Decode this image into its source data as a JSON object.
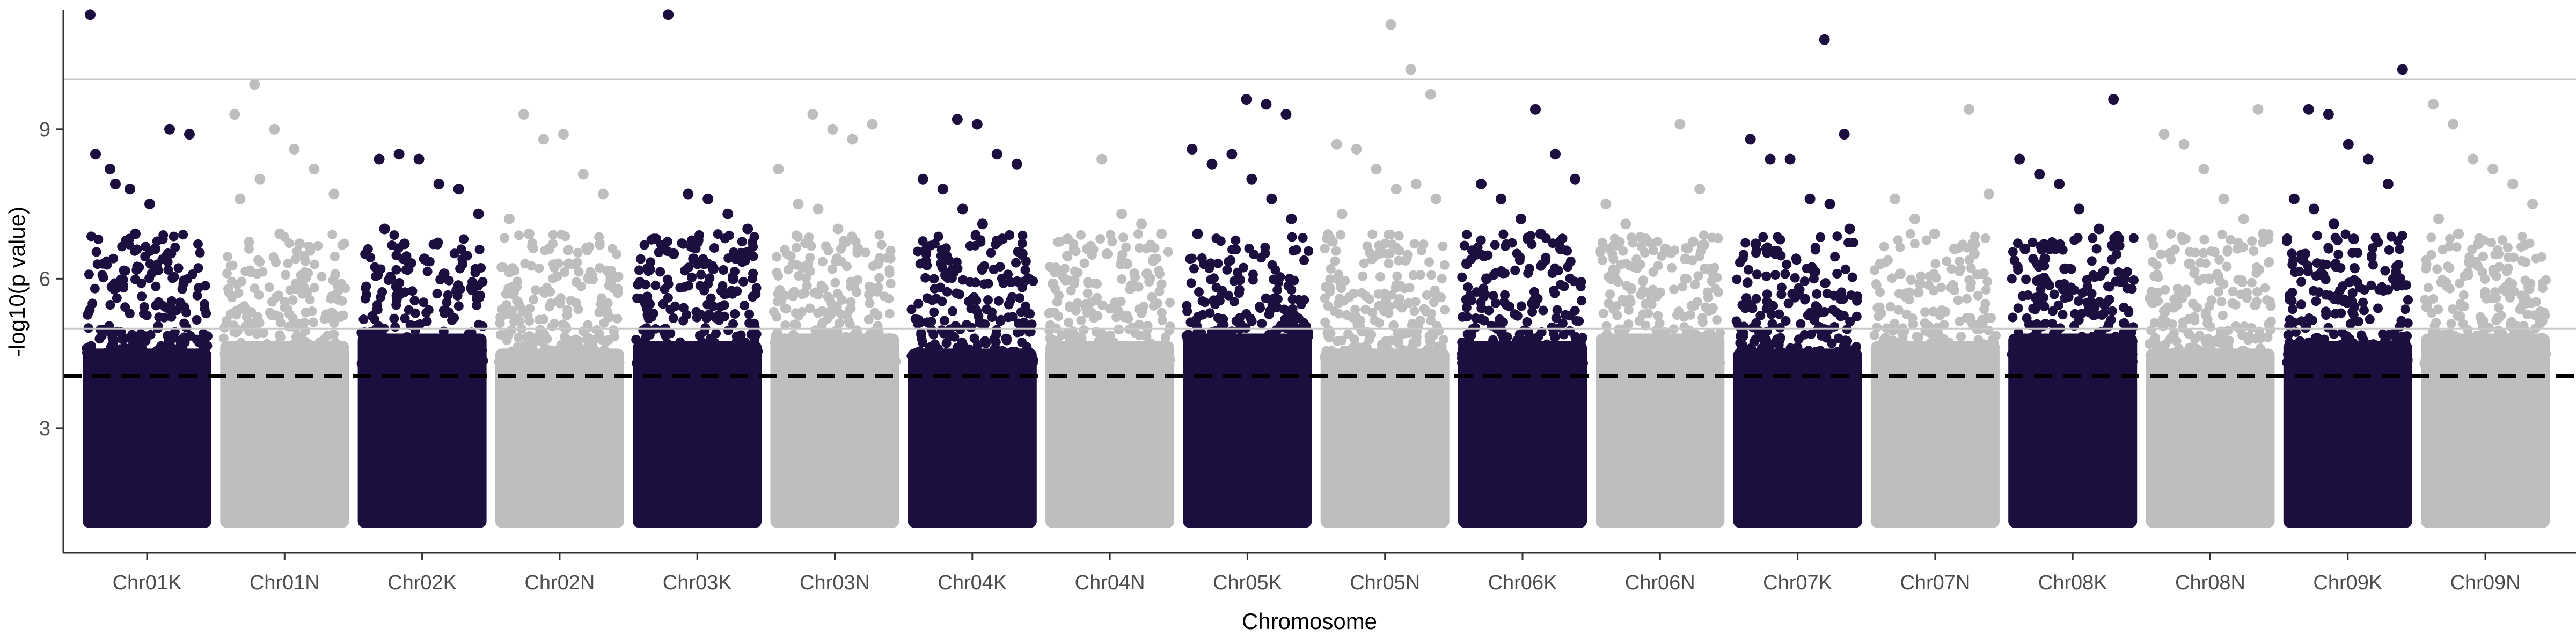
{
  "chart_data": {
    "type": "scatter",
    "subtype": "manhattan",
    "xlabel": "Chromosome",
    "ylabel": "-log10(p value)",
    "ylim": [
      0.5,
      11.4
    ],
    "y_ticks": [
      3,
      6,
      9
    ],
    "categories": [
      "Chr01K",
      "Chr01N",
      "Chr02K",
      "Chr02N",
      "Chr03K",
      "Chr03N",
      "Chr04K",
      "Chr04N",
      "Chr05K",
      "Chr05N",
      "Chr06K",
      "Chr06N",
      "Chr07K",
      "Chr07N",
      "Chr08K",
      "Chr08N",
      "Chr09K",
      "Chr09N"
    ],
    "colors": {
      "odd_chromosome": "#1c0f40",
      "even_chromosome": "#bebebe",
      "threshold_line": "#000000",
      "reference_line": "#c8c8c8",
      "axis_line": "#333333"
    },
    "threshold_line": {
      "y": 4.05,
      "style": "dashed"
    },
    "reference_lines": [
      5.0,
      10.0
    ],
    "point_floor": 1.0,
    "grid": false,
    "legend": "none",
    "peaks": [
      {
        "chromosome": "Chr01K",
        "values": [
          11.3,
          8.2,
          7.8,
          7.5,
          9.0,
          8.9,
          8.5,
          7.9,
          6.9,
          6.6
        ]
      },
      {
        "chromosome": "Chr01N",
        "values": [
          9.3,
          9.9,
          9.0,
          8.6,
          8.2,
          7.7,
          7.6,
          8.0,
          6.9,
          6.7
        ]
      },
      {
        "chromosome": "Chr02K",
        "values": [
          8.4,
          8.5,
          8.4,
          7.9,
          7.8,
          7.3,
          7.0,
          6.7,
          6.4,
          6.1
        ]
      },
      {
        "chromosome": "Chr02N",
        "values": [
          9.3,
          8.8,
          8.9,
          8.1,
          7.7,
          7.2,
          6.9,
          6.6,
          6.3,
          6.0
        ]
      },
      {
        "chromosome": "Chr03K",
        "values": [
          11.3,
          7.7,
          7.6,
          7.3,
          7.0,
          6.8,
          6.5,
          6.4,
          6.2,
          6.0
        ]
      },
      {
        "chromosome": "Chr03N",
        "values": [
          9.3,
          9.0,
          8.8,
          9.1,
          8.2,
          7.5,
          7.4,
          7.0,
          6.6,
          6.3
        ]
      },
      {
        "chromosome": "Chr04K",
        "values": [
          9.2,
          9.1,
          8.5,
          8.3,
          8.0,
          7.8,
          7.4,
          7.1,
          6.8,
          6.5
        ]
      },
      {
        "chromosome": "Chr04N",
        "values": [
          8.4,
          7.3,
          7.1,
          6.9,
          6.8,
          6.6,
          6.5,
          6.3,
          6.1,
          5.9
        ]
      },
      {
        "chromosome": "Chr05K",
        "values": [
          9.6,
          9.5,
          9.3,
          8.6,
          8.3,
          8.5,
          8.0,
          7.6,
          7.2,
          6.9
        ]
      },
      {
        "chromosome": "Chr05N",
        "values": [
          11.1,
          10.2,
          9.7,
          8.7,
          8.6,
          8.2,
          7.8,
          7.9,
          7.6,
          7.3
        ]
      },
      {
        "chromosome": "Chr06K",
        "values": [
          9.4,
          8.5,
          8.0,
          7.9,
          7.6,
          7.2,
          6.9,
          6.6,
          6.3,
          6.0
        ]
      },
      {
        "chromosome": "Chr06N",
        "values": [
          9.1,
          7.8,
          7.5,
          7.1,
          6.8,
          6.6,
          6.4,
          6.2,
          6.0,
          5.8
        ]
      },
      {
        "chromosome": "Chr07K",
        "values": [
          10.8,
          8.9,
          8.8,
          8.4,
          8.4,
          7.6,
          7.5,
          7.0,
          6.7,
          6.5
        ]
      },
      {
        "chromosome": "Chr07N",
        "values": [
          9.4,
          7.7,
          7.6,
          7.2,
          6.9,
          6.6,
          6.5,
          6.3,
          6.1,
          5.9
        ]
      },
      {
        "chromosome": "Chr08K",
        "values": [
          9.6,
          8.4,
          8.1,
          7.9,
          7.4,
          7.0,
          6.8,
          6.6,
          6.4,
          6.2
        ]
      },
      {
        "chromosome": "Chr08N",
        "values": [
          9.4,
          8.9,
          8.7,
          8.2,
          7.6,
          7.2,
          6.9,
          6.5,
          6.3,
          6.0
        ]
      },
      {
        "chromosome": "Chr09K",
        "values": [
          10.2,
          9.4,
          9.3,
          8.7,
          8.4,
          7.9,
          7.6,
          7.4,
          7.1,
          6.8
        ]
      },
      {
        "chromosome": "Chr09N",
        "values": [
          9.5,
          9.1,
          8.4,
          8.2,
          7.9,
          7.5,
          7.2,
          6.9,
          6.7,
          6.5
        ]
      }
    ]
  }
}
